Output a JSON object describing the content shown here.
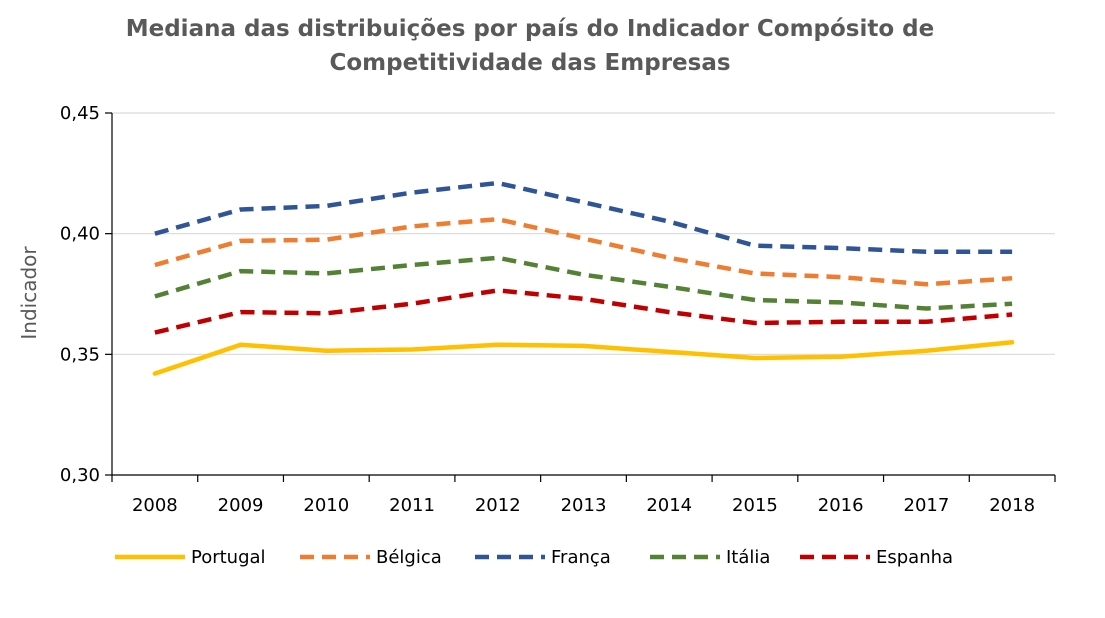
{
  "chart_data": {
    "type": "line",
    "title_lines": [
      "Mediana das distribuições por país do Indicador Compósito de",
      "Competitividade das Empresas"
    ],
    "ylabel": "Indicador",
    "xlabel": "",
    "categories": [
      "2008",
      "2009",
      "2010",
      "2011",
      "2012",
      "2013",
      "2014",
      "2015",
      "2016",
      "2017",
      "2018"
    ],
    "ylim": [
      0.3,
      0.45
    ],
    "yticks": [
      0.3,
      0.35,
      0.4,
      0.45
    ],
    "ytick_labels": [
      "0,30",
      "0,35",
      "0,40",
      "0,45"
    ],
    "grid": true,
    "legend_position": "bottom",
    "series": [
      {
        "name": "Portugal",
        "color": "#FFC000",
        "style": "solid",
        "values": [
          0.342,
          0.354,
          0.3515,
          0.352,
          0.354,
          0.3535,
          0.351,
          0.3485,
          0.349,
          0.3515,
          0.355
        ]
      },
      {
        "name": "Bélgica",
        "color": "#ED7D31",
        "style": "dashed",
        "values": [
          0.387,
          0.397,
          0.3975,
          0.403,
          0.406,
          0.398,
          0.39,
          0.3835,
          0.382,
          0.379,
          0.3815
        ]
      },
      {
        "name": "França",
        "color": "#2F5597",
        "style": "dashed",
        "values": [
          0.4,
          0.41,
          0.4115,
          0.417,
          0.421,
          0.413,
          0.405,
          0.395,
          0.394,
          0.3925,
          0.3925
        ]
      },
      {
        "name": "Itália",
        "color": "#548235",
        "style": "dashed",
        "values": [
          0.374,
          0.3845,
          0.3835,
          0.387,
          0.39,
          0.383,
          0.378,
          0.3725,
          0.3715,
          0.369,
          0.371
        ]
      },
      {
        "name": "Espanha",
        "color": "#C00000",
        "style": "dashed",
        "values": [
          0.359,
          0.3675,
          0.367,
          0.371,
          0.3765,
          0.373,
          0.3675,
          0.363,
          0.3635,
          0.3635,
          0.3665
        ]
      }
    ]
  }
}
